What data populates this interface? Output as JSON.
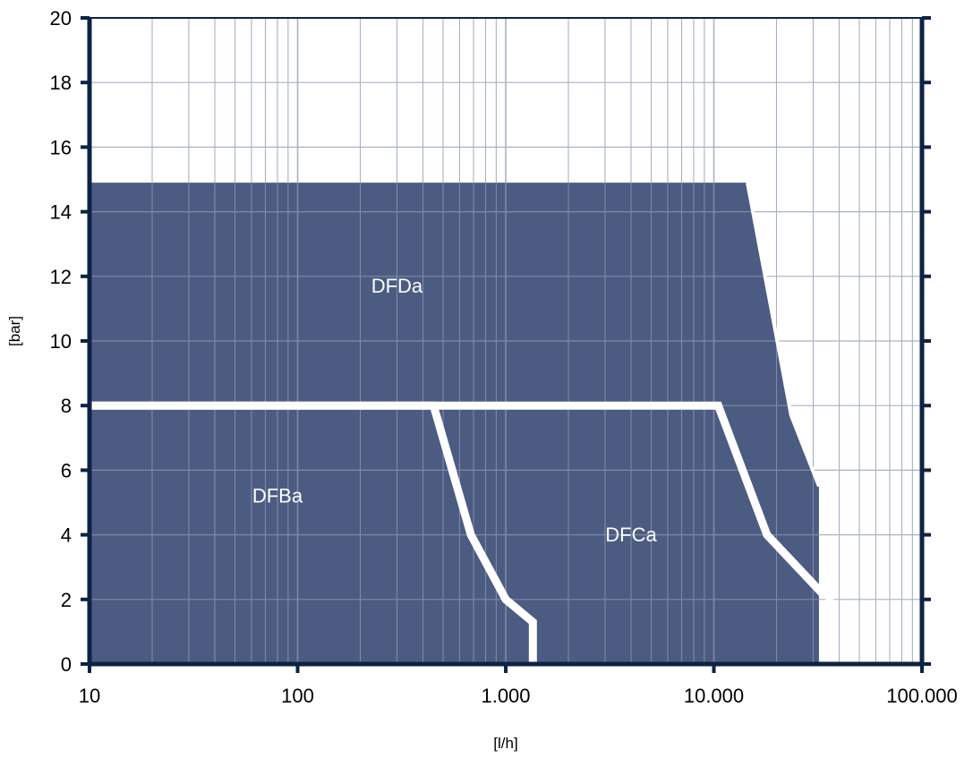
{
  "chart_data": {
    "type": "area",
    "title": "",
    "xlabel": "[l/h]",
    "ylabel": "[bar]",
    "x_scale": "log",
    "xlim": [
      10,
      100000
    ],
    "ylim": [
      0,
      20
    ],
    "grid": true,
    "x_ticks": [
      {
        "value": 10,
        "label": "10"
      },
      {
        "value": 100,
        "label": "100"
      },
      {
        "value": 1000,
        "label": "1.000"
      },
      {
        "value": 10000,
        "label": "10.000"
      },
      {
        "value": 100000,
        "label": "100.000"
      }
    ],
    "y_ticks": [
      {
        "value": 0,
        "label": "0"
      },
      {
        "value": 2,
        "label": "2"
      },
      {
        "value": 4,
        "label": "4"
      },
      {
        "value": 6,
        "label": "6"
      },
      {
        "value": 8,
        "label": "8"
      },
      {
        "value": 10,
        "label": "10"
      },
      {
        "value": 12,
        "label": "12"
      },
      {
        "value": 14,
        "label": "14"
      },
      {
        "value": 16,
        "label": "16"
      },
      {
        "value": 18,
        "label": "18"
      },
      {
        "value": 20,
        "label": "20"
      }
    ],
    "series": [
      {
        "name": "DFDa",
        "label_at": [
          300,
          11.5
        ],
        "points": [
          [
            10,
            0
          ],
          [
            10,
            14.9
          ],
          [
            14500,
            14.9
          ],
          [
            19500,
            10.5
          ],
          [
            23500,
            7.7
          ],
          [
            32000,
            5.5
          ],
          [
            32000,
            0
          ]
        ]
      },
      {
        "name": "DFBa",
        "label_at": [
          80,
          5.0
        ],
        "points": [
          [
            10,
            8
          ],
          [
            450,
            8
          ],
          [
            680,
            4
          ],
          [
            1000,
            2
          ],
          [
            1350,
            1.3
          ],
          [
            1350,
            0
          ]
        ]
      },
      {
        "name": "DFCa",
        "label_at": [
          4000,
          3.8
        ],
        "points": [
          [
            10,
            8
          ],
          [
            10500,
            8
          ],
          [
            18000,
            4
          ],
          [
            33000,
            2.2
          ],
          [
            36000,
            2.2
          ],
          [
            36000,
            0
          ]
        ]
      }
    ],
    "colors": {
      "fill": "#4b5b82",
      "grid_on_fill": "#7f8aa8",
      "grid_on_white": "#a9b1c4",
      "axis": "#0d2346",
      "boundary": "#ffffff"
    }
  }
}
